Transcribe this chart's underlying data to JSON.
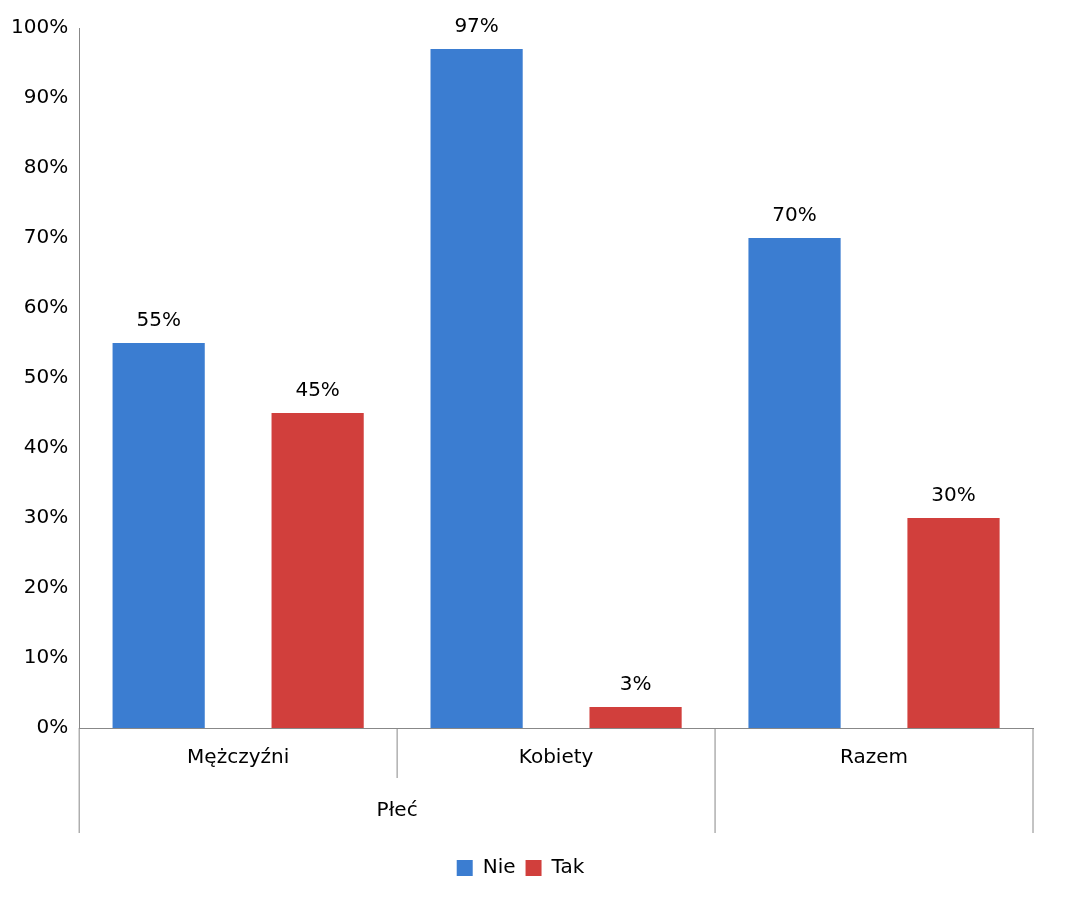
{
  "chart_data": {
    "type": "bar",
    "categories": [
      "Mężczyźni",
      "Kobiety",
      "Razem"
    ],
    "series": [
      {
        "name": "Nie",
        "color": "#3b7dd1",
        "values": [
          55,
          97,
          70
        ],
        "value_labels": [
          "55%",
          "97%",
          "70%"
        ]
      },
      {
        "name": "Tak",
        "color": "#d13f3c",
        "values": [
          45,
          3,
          30
        ],
        "value_labels": [
          "45%",
          "3%",
          "30%"
        ]
      }
    ],
    "annotations": [
      "Płeć"
    ],
    "ylim": [
      0,
      100
    ],
    "yticks": [
      {
        "value": 0,
        "label": "0%"
      },
      {
        "value": 10,
        "label": "10%"
      },
      {
        "value": 20,
        "label": "20%"
      },
      {
        "value": 30,
        "label": "30%"
      },
      {
        "value": 40,
        "label": "40%"
      },
      {
        "value": 50,
        "label": "50%"
      },
      {
        "value": 60,
        "label": "60%"
      },
      {
        "value": 70,
        "label": "70%"
      },
      {
        "value": 80,
        "label": "80%"
      },
      {
        "value": 90,
        "label": "90%"
      },
      {
        "value": 100,
        "label": "100%"
      }
    ],
    "grid": false,
    "legend": "bottom"
  }
}
